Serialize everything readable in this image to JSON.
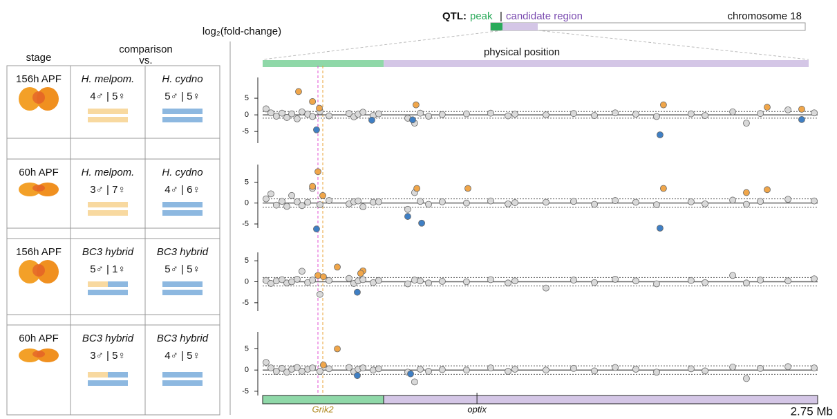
{
  "header": {
    "qtl_label": "QTL:",
    "peak": "peak",
    "separator": "|",
    "candidate": "candidate region",
    "chromosome": "chromosome 18",
    "y_axis_label": "log₂(fold-change)",
    "physical_position": "physical position",
    "scale": "2.75 Mb"
  },
  "table": {
    "headers": {
      "stage": "stage",
      "comparison": "comparison",
      "vs": "vs."
    },
    "rows": [
      {
        "stage": "156h APF",
        "groups": [
          {
            "species": "H. melpom.",
            "counts": "4♂ | 5♀"
          },
          {
            "species": "H. cydno",
            "counts": "5♂ | 5♀"
          }
        ]
      },
      {
        "stage": "60h APF",
        "groups": [
          {
            "species": "H. melpom.",
            "counts": "3♂ | 7♀"
          },
          {
            "species": "H. cydno",
            "counts": "4♂ | 6♀"
          }
        ]
      },
      {
        "stage": "156h APF",
        "groups": [
          {
            "species": "BC3 hybrid",
            "counts": "5♂ | 1♀"
          },
          {
            "species": "BC3 hybrid",
            "counts": "5♂ | 5♀"
          }
        ]
      },
      {
        "stage": "60h APF",
        "groups": [
          {
            "species": "BC3 hybrid",
            "counts": "3♂ | 5♀"
          },
          {
            "species": "BC3 hybrid",
            "counts": "4♂ | 5♀"
          }
        ]
      }
    ]
  },
  "peak_end": 0.6,
  "genes": [
    {
      "name": "Grik2",
      "start": 0.274,
      "end": 0.298
    },
    {
      "name": "optix",
      "start": 1.062
    }
  ],
  "chart_data": [
    {
      "type": "scatter",
      "xlim": [
        0,
        2.75
      ],
      "ylim": [
        -8.5,
        11.25
      ],
      "yticks": [
        -5,
        0,
        5
      ],
      "threshold": 1,
      "series": [
        {
          "color": "#d9d9d9",
          "x": [
            0.017,
            0.041,
            0.068,
            0.096,
            0.12,
            0.144,
            0.171,
            0.195,
            0.223,
            0.247,
            0.284,
            0.329,
            0.428,
            0.452,
            0.473,
            0.497,
            0.548,
            0.575,
            0.719,
            0.753,
            0.781,
            0.822,
            0.89,
            1.01,
            1.13,
            1.216,
            1.25,
            1.404,
            1.541,
            1.644,
            1.747,
            1.849,
            1.952,
            2.123,
            2.192,
            2.329,
            2.397,
            2.466,
            2.603,
            2.733
          ],
          "values": [
            1.8,
            0.6,
            -0.4,
            0.5,
            -0.8,
            0.3,
            -1.2,
            0.9,
            0.2,
            -0.5,
            1.0,
            -0.3,
            0.4,
            -0.6,
            0.2,
            0.8,
            -0.2,
            0.3,
            -1.0,
            -2.5,
            0.5,
            -0.4,
            0.1,
            0.3,
            0.5,
            -0.3,
            0.2,
            0.0,
            0.4,
            -0.2,
            0.6,
            0.2,
            -0.5,
            0.3,
            -0.2,
            0.9,
            -2.5,
            0.4,
            1.5,
            0.6
          ]
        },
        {
          "color": "#f0a64a",
          "x": [
            0.178,
            0.247,
            0.281,
            0.76,
            1.986,
            2.5,
            2.671
          ],
          "values": [
            7,
            4,
            2,
            3,
            3,
            2.3,
            1.7
          ]
        },
        {
          "color": "#3f7fc4",
          "x": [
            0.267,
            0.541,
            0.743,
            1.969,
            2.671
          ],
          "values": [
            -4.5,
            -1.6,
            -1.5,
            -6,
            -1.4
          ]
        }
      ]
    },
    {
      "type": "scatter",
      "xlim": [
        0,
        2.75
      ],
      "ylim": [
        -6,
        9.2
      ],
      "yticks": [
        -5,
        0,
        5
      ],
      "threshold": 1,
      "series": [
        {
          "color": "#d9d9d9",
          "x": [
            0.017,
            0.041,
            0.068,
            0.096,
            0.12,
            0.144,
            0.171,
            0.195,
            0.223,
            0.247,
            0.284,
            0.329,
            0.428,
            0.452,
            0.473,
            0.497,
            0.548,
            0.575,
            0.719,
            0.753,
            0.781,
            0.822,
            0.89,
            1.01,
            1.13,
            1.216,
            1.25,
            1.404,
            1.541,
            1.644,
            1.747,
            1.849,
            1.952,
            2.123,
            2.192,
            2.329,
            2.397,
            2.466,
            2.603,
            2.733
          ],
          "values": [
            1.0,
            2.2,
            -0.5,
            0.4,
            -0.8,
            1.8,
            0.3,
            -0.6,
            0.2,
            3.5,
            -0.4,
            0.6,
            -0.2,
            0.3,
            0.5,
            -0.9,
            0.2,
            0.3,
            -1.5,
            2.5,
            0.4,
            -0.3,
            0.3,
            0.0,
            0.5,
            -0.2,
            0.1,
            0.2,
            0.4,
            -0.3,
            0.6,
            0.2,
            -0.4,
            0.3,
            -0.2,
            0.7,
            -0.3,
            0.4,
            0.9,
            0.5
          ]
        },
        {
          "color": "#f0a64a",
          "x": [
            0.274,
            0.247,
            0.298,
            0.764,
            1.017,
            1.986,
            2.397,
            2.5
          ],
          "values": [
            7.5,
            4,
            1.8,
            3.5,
            3.5,
            3.5,
            2.5,
            3.2
          ]
        },
        {
          "color": "#3f7fc4",
          "x": [
            0.719,
            0.788,
            0.267,
            1.969
          ],
          "values": [
            -3.2,
            -4.8,
            -6.2,
            -6
          ]
        }
      ]
    },
    {
      "type": "scatter",
      "xlim": [
        0,
        2.75
      ],
      "ylim": [
        -7,
        7
      ],
      "yticks": [
        -5,
        0,
        5
      ],
      "threshold": 1,
      "series": [
        {
          "color": "#d9d9d9",
          "x": [
            0.017,
            0.041,
            0.068,
            0.096,
            0.12,
            0.144,
            0.171,
            0.195,
            0.223,
            0.247,
            0.284,
            0.329,
            0.428,
            0.452,
            0.473,
            0.497,
            0.548,
            0.575,
            0.719,
            0.753,
            0.781,
            0.822,
            0.89,
            1.01,
            1.13,
            1.216,
            1.25,
            1.404,
            1.541,
            1.644,
            1.747,
            1.849,
            1.952,
            2.123,
            2.192,
            2.329,
            2.397,
            2.466,
            2.603,
            2.733
          ],
          "values": [
            0.3,
            -0.4,
            0.2,
            0.5,
            -0.3,
            0.0,
            0.6,
            2.5,
            -0.2,
            0.4,
            -3.0,
            0.3,
            0.8,
            -0.4,
            0.2,
            0.5,
            -0.2,
            0.3,
            -0.5,
            0.4,
            0.2,
            -0.3,
            0.1,
            0.0,
            0.5,
            -0.3,
            0.2,
            -1.5,
            0.4,
            -0.2,
            0.6,
            0.2,
            -0.5,
            0.3,
            -0.2,
            1.5,
            -0.3,
            0.4,
            0.2,
            0.7
          ]
        },
        {
          "color": "#f0a64a",
          "x": [
            0.37,
            0.497,
            0.486,
            0.274,
            0.301
          ],
          "values": [
            3.5,
            2.6,
            2.0,
            1.5,
            1.2
          ]
        },
        {
          "color": "#3f7fc4",
          "x": [
            0.469
          ],
          "values": [
            -2.5
          ]
        }
      ]
    },
    {
      "type": "scatter",
      "xlim": [
        0,
        2.75
      ],
      "ylim": [
        -6,
        9
      ],
      "yticks": [
        -5,
        0,
        5
      ],
      "threshold": 1,
      "series": [
        {
          "color": "#d9d9d9",
          "x": [
            0.017,
            0.041,
            0.068,
            0.096,
            0.12,
            0.144,
            0.171,
            0.195,
            0.223,
            0.247,
            0.284,
            0.329,
            0.428,
            0.452,
            0.473,
            0.497,
            0.548,
            0.575,
            0.719,
            0.753,
            0.781,
            0.822,
            0.89,
            1.01,
            1.13,
            1.216,
            1.25,
            1.404,
            1.541,
            1.644,
            1.747,
            1.849,
            1.952,
            2.123,
            2.192,
            2.329,
            2.397,
            2.466,
            2.603,
            2.733
          ],
          "values": [
            1.8,
            0.5,
            -0.3,
            0.4,
            -0.5,
            0.2,
            0.6,
            -0.3,
            0.2,
            0.5,
            -0.3,
            0.3,
            0.6,
            -0.4,
            0.2,
            0.5,
            0.0,
            0.3,
            -0.5,
            -2.8,
            0.2,
            -0.3,
            0.1,
            0.0,
            0.5,
            -0.3,
            0.2,
            0.0,
            0.4,
            -0.2,
            0.6,
            0.2,
            -0.5,
            0.3,
            -0.2,
            0.7,
            -2.0,
            0.4,
            0.8,
            0.5
          ]
        },
        {
          "color": "#f0a64a",
          "x": [
            0.37,
            0.301
          ],
          "values": [
            5,
            1.2
          ]
        },
        {
          "color": "#3f7fc4",
          "x": [
            0.469,
            0.733
          ],
          "values": [
            -1.3,
            -0.9
          ]
        }
      ]
    }
  ]
}
